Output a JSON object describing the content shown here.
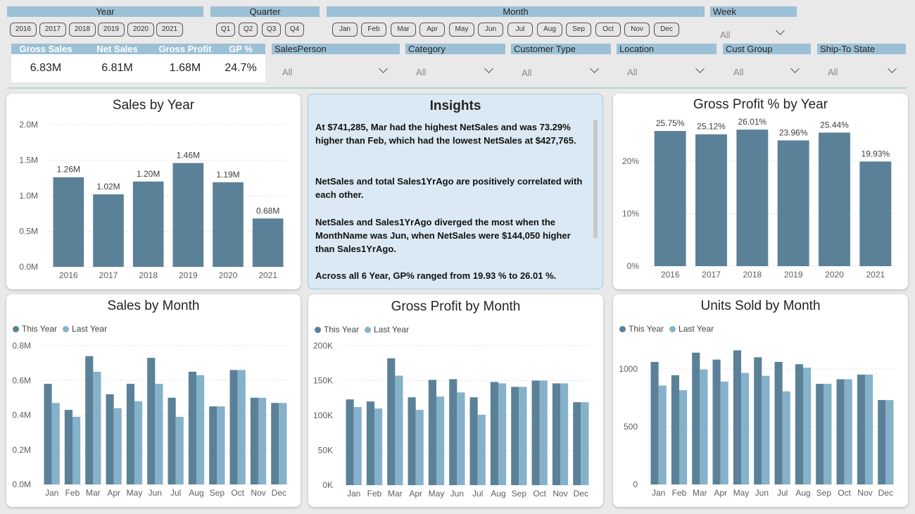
{
  "colors": {
    "this_year": "#5a8198",
    "last_year": "#86b1ca",
    "header_band": "#9cc0d6"
  },
  "slicers": {
    "year": {
      "label": "Year",
      "options": [
        "2016",
        "2017",
        "2018",
        "2019",
        "2020",
        "2021"
      ]
    },
    "quarter": {
      "label": "Quarter",
      "options": [
        "Q1",
        "Q2",
        "Q3",
        "Q4"
      ]
    },
    "month": {
      "label": "Month",
      "options": [
        "Jan",
        "Feb",
        "Mar",
        "Apr",
        "May",
        "Jun",
        "Jul",
        "Aug",
        "Sep",
        "Oct",
        "Nov",
        "Dec"
      ]
    },
    "week": {
      "label": "Week",
      "value": "All"
    }
  },
  "kpis": [
    {
      "label": "Gross Sales",
      "value": "6.83M"
    },
    {
      "label": "Net Sales",
      "value": "6.81M"
    },
    {
      "label": "Gross Profit",
      "value": "1.68M"
    },
    {
      "label": "GP %",
      "value": "24.7%"
    }
  ],
  "filters": [
    {
      "label": "SalesPerson",
      "value": "All"
    },
    {
      "label": "Category",
      "value": "All"
    },
    {
      "label": "Customer Type",
      "value": "All"
    },
    {
      "label": "Location",
      "value": "All"
    },
    {
      "label": "Cust Group",
      "value": "All"
    },
    {
      "label": "Ship-To State",
      "value": "All"
    }
  ],
  "insights": {
    "title": "Insights",
    "paragraphs": [
      "At $741,285, Mar had the highest NetSales and was 73.29% higher than Feb, which had the lowest NetSales at $427,765.",
      "NetSales and total Sales1YrAgo are positively correlated with each other.",
      "NetSales and Sales1YrAgo diverged the most when the MonthName was Jun, when NetSales were $144,050 higher than Sales1YrAgo.",
      "Across all 6 Year, GP% ranged from 19.93 % to 26.01 %."
    ]
  },
  "legend": {
    "this_year": "This Year",
    "last_year": "Last Year"
  },
  "chart_data": [
    {
      "id": "sales_by_year",
      "type": "bar",
      "title": "Sales by Year",
      "categories": [
        "2016",
        "2017",
        "2018",
        "2019",
        "2020",
        "2021"
      ],
      "values": [
        1.26,
        1.02,
        1.2,
        1.46,
        1.19,
        0.68
      ],
      "data_labels": [
        "1.26M",
        "1.02M",
        "1.20M",
        "1.46M",
        "1.19M",
        "0.68M"
      ],
      "ylim": [
        0,
        2.0
      ],
      "yticks": [
        0,
        0.5,
        1.0,
        1.5,
        2.0
      ],
      "ytick_labels": [
        "0.0M",
        "0.5M",
        "1.0M",
        "1.5M",
        "2.0M"
      ],
      "grid": true
    },
    {
      "id": "gp_pct_by_year",
      "type": "bar",
      "title": "Gross Profit % by Year",
      "categories": [
        "2016",
        "2017",
        "2018",
        "2019",
        "2020",
        "2021"
      ],
      "values": [
        25.75,
        25.12,
        26.01,
        23.96,
        25.44,
        19.93
      ],
      "data_labels": [
        "25.75%",
        "25.12%",
        "26.01%",
        "23.96%",
        "25.44%",
        "19.93%"
      ],
      "ylim": [
        0,
        27.5
      ],
      "yticks": [
        0,
        10,
        20
      ],
      "ytick_labels": [
        "0%",
        "10%",
        "20%"
      ],
      "grid": true
    },
    {
      "id": "sales_by_month",
      "type": "bar",
      "title": "Sales by Month",
      "categories": [
        "Jan",
        "Feb",
        "Mar",
        "Apr",
        "May",
        "Jun",
        "Jul",
        "Aug",
        "Sep",
        "Oct",
        "Nov",
        "Dec"
      ],
      "series": [
        {
          "name": "This Year",
          "values": [
            0.58,
            0.43,
            0.74,
            0.52,
            0.58,
            0.73,
            0.5,
            0.65,
            0.45,
            0.66,
            0.5,
            0.47
          ]
        },
        {
          "name": "Last Year",
          "values": [
            0.47,
            0.39,
            0.65,
            0.44,
            0.48,
            0.58,
            0.39,
            0.63,
            0.45,
            0.66,
            0.5,
            0.47
          ]
        }
      ],
      "ylim": [
        0,
        0.8
      ],
      "yticks": [
        0,
        0.2,
        0.4,
        0.6,
        0.8
      ],
      "ytick_labels": [
        "0.0M",
        "0.2M",
        "0.4M",
        "0.6M",
        "0.8M"
      ],
      "grid": true
    },
    {
      "id": "gross_profit_by_month",
      "type": "bar",
      "title": "Gross Profit by Month",
      "categories": [
        "Jan",
        "Feb",
        "Mar",
        "Apr",
        "May",
        "Jun",
        "Jul",
        "Aug",
        "Sep",
        "Oct",
        "Nov",
        "Dec"
      ],
      "series": [
        {
          "name": "This Year",
          "values": [
            123,
            120,
            182,
            126,
            151,
            152,
            126,
            148,
            141,
            150,
            146,
            119
          ]
        },
        {
          "name": "Last Year",
          "values": [
            112,
            110,
            157,
            108,
            127,
            133,
            101,
            146,
            141,
            150,
            146,
            119
          ]
        }
      ],
      "ylim": [
        0,
        200
      ],
      "yticks": [
        0,
        50,
        100,
        150,
        200
      ],
      "ytick_labels": [
        "0K",
        "50K",
        "100K",
        "150K",
        "200K"
      ],
      "grid": true
    },
    {
      "id": "units_sold_by_month",
      "type": "bar",
      "title": "Units Sold by Month",
      "categories": [
        "Jan",
        "Feb",
        "Mar",
        "Apr",
        "May",
        "Jun",
        "Jul",
        "Aug",
        "Sep",
        "Oct",
        "Nov",
        "Dec"
      ],
      "series": [
        {
          "name": "This Year",
          "values": [
            1060,
            945,
            1140,
            1080,
            1160,
            1100,
            1060,
            1040,
            870,
            910,
            950,
            730
          ]
        },
        {
          "name": "Last Year",
          "values": [
            855,
            815,
            995,
            890,
            965,
            940,
            805,
            1010,
            870,
            910,
            950,
            730
          ]
        }
      ],
      "ylim": [
        0,
        1200
      ],
      "yticks": [
        0,
        500,
        1000
      ],
      "ytick_labels": [
        "0",
        "500",
        "1000"
      ],
      "grid": true
    }
  ]
}
